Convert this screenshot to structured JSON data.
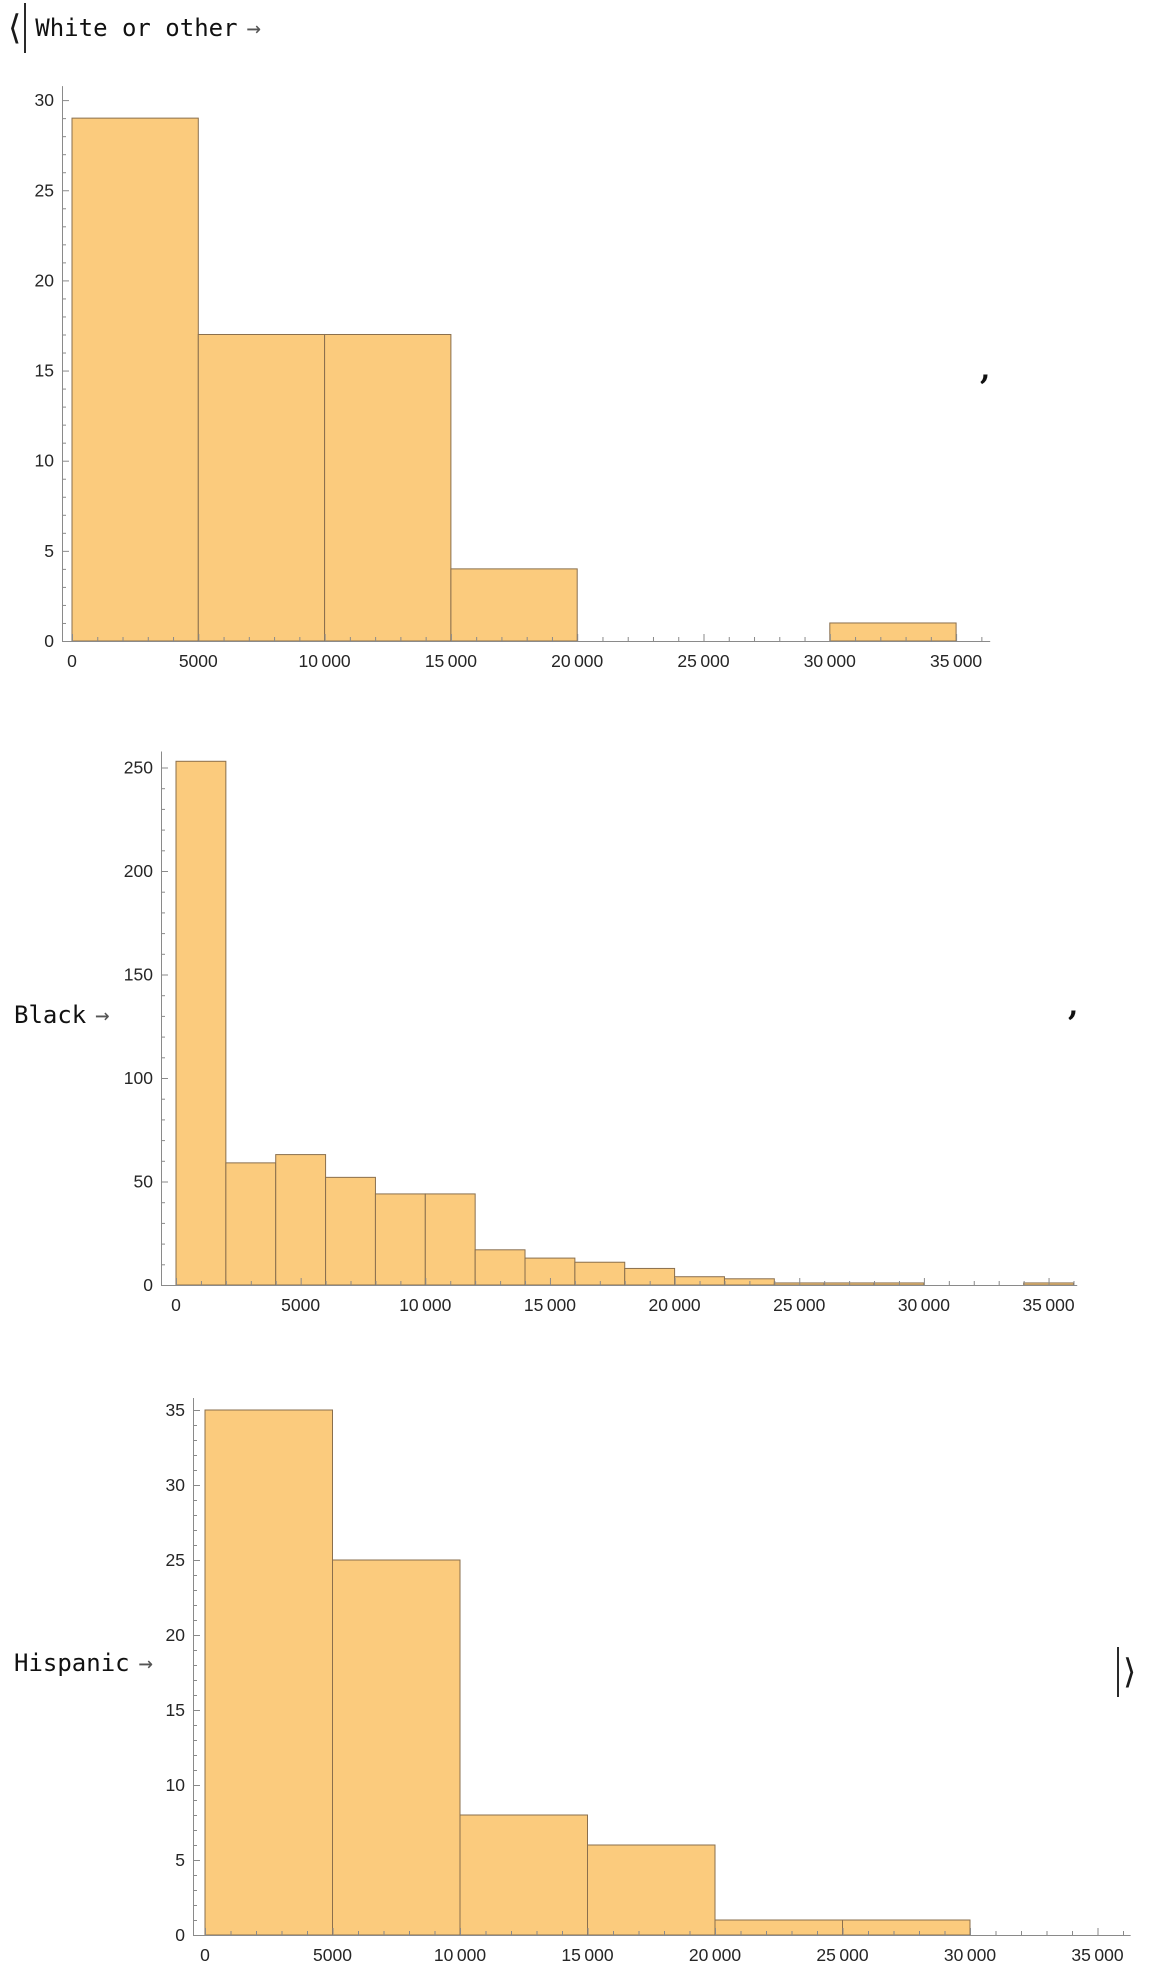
{
  "notebook": {
    "open_bracket": "⟨",
    "close_bracket": "⟩",
    "separator": ",",
    "entries": [
      {
        "key": "White or other",
        "arrow": "→"
      },
      {
        "key": "Black",
        "arrow": "→"
      },
      {
        "key": "Hispanic",
        "arrow": "→"
      }
    ]
  },
  "colors": {
    "bar_fill": "#fbcb7d",
    "bar_edge": "#8a6f4d",
    "axis": "#8a8a8a",
    "tick_label": "#262626",
    "key_text": "#111111",
    "arrow": "#555555"
  },
  "chart_data": [
    {
      "type": "bar",
      "subtype": "histogram",
      "series_label": "White or other",
      "bin_width": 5000,
      "bin_edges": [
        0,
        5000,
        10000,
        15000,
        20000,
        25000,
        30000,
        35000
      ],
      "values": [
        29,
        17,
        17,
        4,
        0,
        0,
        1
      ],
      "xlim": [
        0,
        36000
      ],
      "ylim": [
        0,
        30
      ],
      "y_tick_step": 5,
      "y_minor_step": 1,
      "y_tick_labels": [
        "0",
        "5",
        "10",
        "15",
        "20",
        "25",
        "30"
      ],
      "x_tick_labels": [
        "0",
        "5000",
        "10 000",
        "15 000",
        "20 000",
        "25 000",
        "30 000",
        "35 000"
      ],
      "grid": "off",
      "legend": "none",
      "bar_fill": "#fbcb7d",
      "bar_edge": "#8a6f4d"
    },
    {
      "type": "bar",
      "subtype": "histogram",
      "series_label": "Black",
      "bin_width": 2000,
      "bin_edges": [
        0,
        2000,
        4000,
        6000,
        8000,
        10000,
        12000,
        14000,
        16000,
        18000,
        20000,
        22000,
        24000,
        26000,
        28000,
        30000,
        32000,
        34000,
        36000
      ],
      "values": [
        253,
        59,
        63,
        52,
        44,
        44,
        17,
        13,
        11,
        8,
        4,
        3,
        1,
        1,
        1,
        0,
        0,
        1
      ],
      "xlim": [
        0,
        36000
      ],
      "ylim": [
        0,
        250
      ],
      "y_tick_step": 50,
      "y_minor_step": 10,
      "y_tick_labels": [
        "0",
        "50",
        "100",
        "150",
        "200",
        "250"
      ],
      "x_tick_labels": [
        "0",
        "5000",
        "10 000",
        "15 000",
        "20 000",
        "25 000",
        "30 000",
        "35 000"
      ],
      "grid": "off",
      "legend": "none",
      "bar_fill": "#fbcb7d",
      "bar_edge": "#8a6f4d"
    },
    {
      "type": "bar",
      "subtype": "histogram",
      "series_label": "Hispanic",
      "bin_width": 5000,
      "bin_edges": [
        0,
        5000,
        10000,
        15000,
        20000,
        25000,
        30000
      ],
      "values": [
        35,
        25,
        8,
        6,
        1,
        1
      ],
      "xlim": [
        0,
        36000
      ],
      "ylim": [
        0,
        35
      ],
      "y_tick_step": 5,
      "y_minor_step": 1,
      "y_tick_labels": [
        "0",
        "5",
        "10",
        "15",
        "20",
        "25",
        "30",
        "35"
      ],
      "x_tick_labels": [
        "0",
        "5000",
        "10 000",
        "15 000",
        "20 000",
        "25 000",
        "30 000",
        "35 000"
      ],
      "grid": "off",
      "legend": "none",
      "bar_fill": "#fbcb7d",
      "bar_edge": "#8a6f4d"
    }
  ]
}
